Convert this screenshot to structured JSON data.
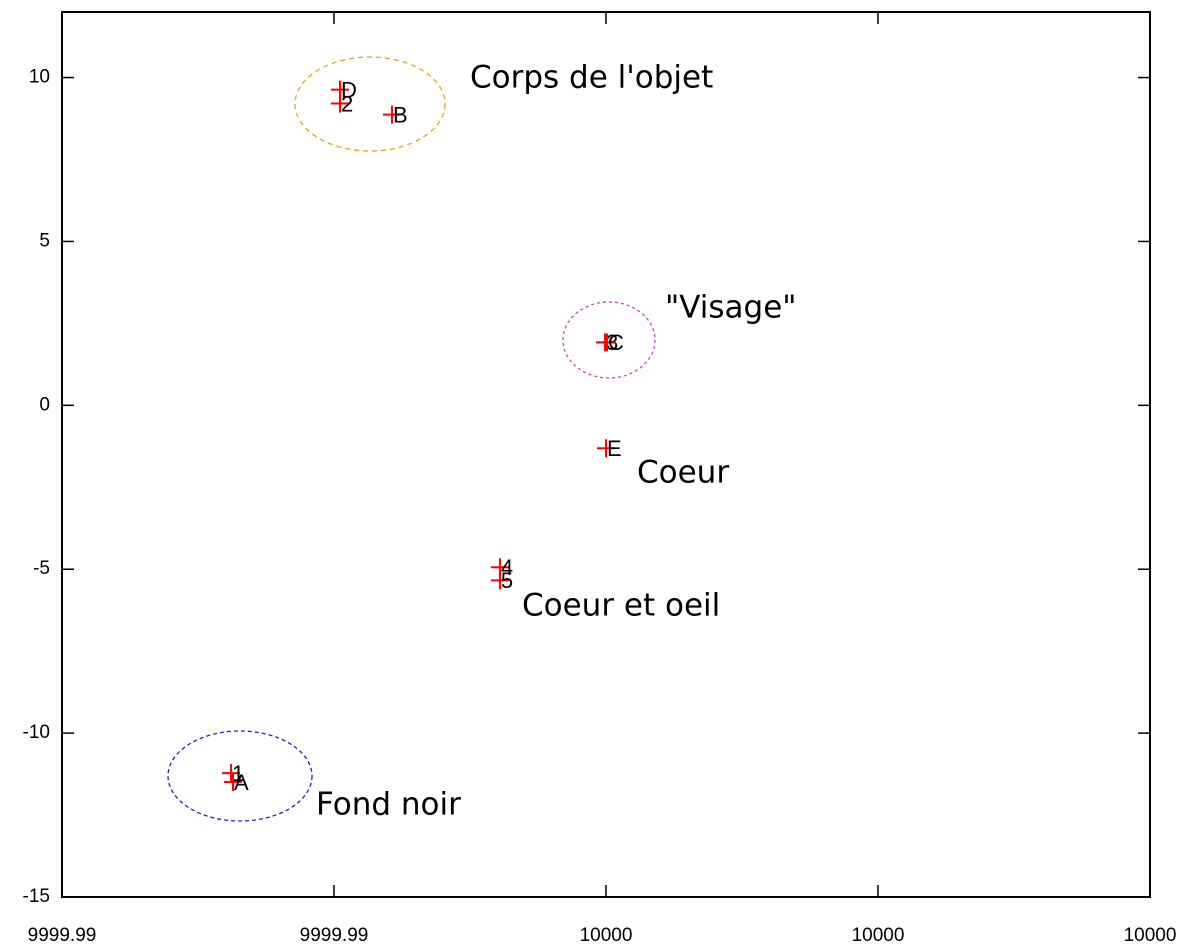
{
  "chart_data": {
    "type": "scatter",
    "xlim": [
      9999.99,
      10000.01
    ],
    "xticks": [
      {
        "value": 9999.99,
        "label": "9999.99"
      },
      {
        "value": 9999.995,
        "label": "9999.99"
      },
      {
        "value": 10000,
        "label": "10000"
      },
      {
        "value": 10000.005,
        "label": "10000"
      },
      {
        "value": 10000.01,
        "label": "10000"
      }
    ],
    "ylim": [
      -15,
      12
    ],
    "yticks": [
      -15,
      -10,
      -5,
      0,
      5,
      10
    ],
    "grid": false,
    "series": [
      {
        "color": "#ff0000",
        "x": [
          9999.993107,
          9999.993143,
          9999.99511,
          9999.99511,
          9999.996066,
          9999.999982,
          10000.000018,
          10000.0,
          9999.99805,
          9999.99805
        ],
        "values": [
          -11.22,
          -11.49,
          9.63,
          9.21,
          8.87,
          1.92,
          1.92,
          -1.31,
          -4.94,
          -5.34
        ],
        "labels": [
          "1",
          "A",
          "D",
          "2",
          "B",
          "3",
          "C",
          "E",
          "4",
          "5"
        ]
      }
    ],
    "annotations": [
      "Corps de l'objet",
      "\"Visage\"",
      "Coeur",
      "Coeur et oeil",
      "Fond noir"
    ]
  }
}
